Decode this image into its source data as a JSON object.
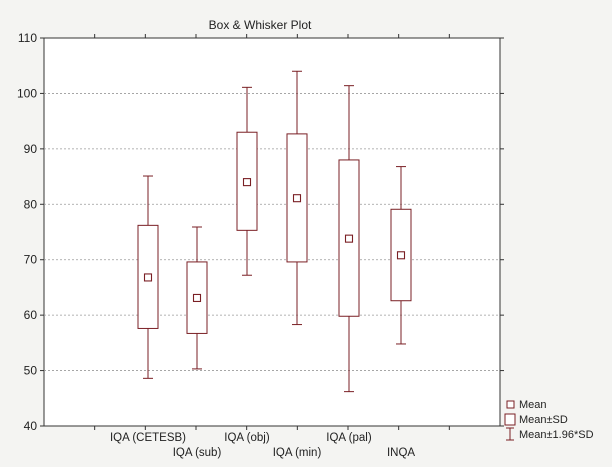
{
  "chart_data": {
    "type": "box",
    "title": "Box & Whisker Plot",
    "xlabel": "",
    "ylabel": "",
    "ylim": [
      40,
      110
    ],
    "yticks": [
      40,
      50,
      60,
      70,
      80,
      90,
      100,
      110
    ],
    "grid": "horizontal dashed",
    "categories": [
      "IQA (CETESB)",
      "IQA (sub)",
      "IQA (obj)",
      "IQA (min)",
      "IQA (pal)",
      "INQA"
    ],
    "series": [
      {
        "mean": [
          66.8,
          63.1,
          84.0,
          81.1,
          73.8,
          70.8
        ],
        "mean_minus_sd": [
          57.6,
          56.7,
          75.3,
          69.6,
          59.8,
          62.6
        ],
        "mean_plus_sd": [
          76.2,
          69.6,
          93.0,
          92.7,
          88.0,
          79.1
        ],
        "whisker_low": [
          48.6,
          50.3,
          67.2,
          58.3,
          46.2,
          54.8
        ],
        "whisker_high": [
          85.1,
          75.9,
          101.1,
          104.0,
          101.4,
          86.8
        ]
      }
    ],
    "legend": {
      "position": "bottom-right",
      "entries": [
        "Mean",
        "Mean±SD",
        "Mean±1.96*SD"
      ]
    },
    "colors": {
      "series": "#7a1f24",
      "plot_background": "#ffffff",
      "page_background": "#f4f4f2",
      "grid": "#9a9a9a",
      "frame": "#333333"
    }
  }
}
